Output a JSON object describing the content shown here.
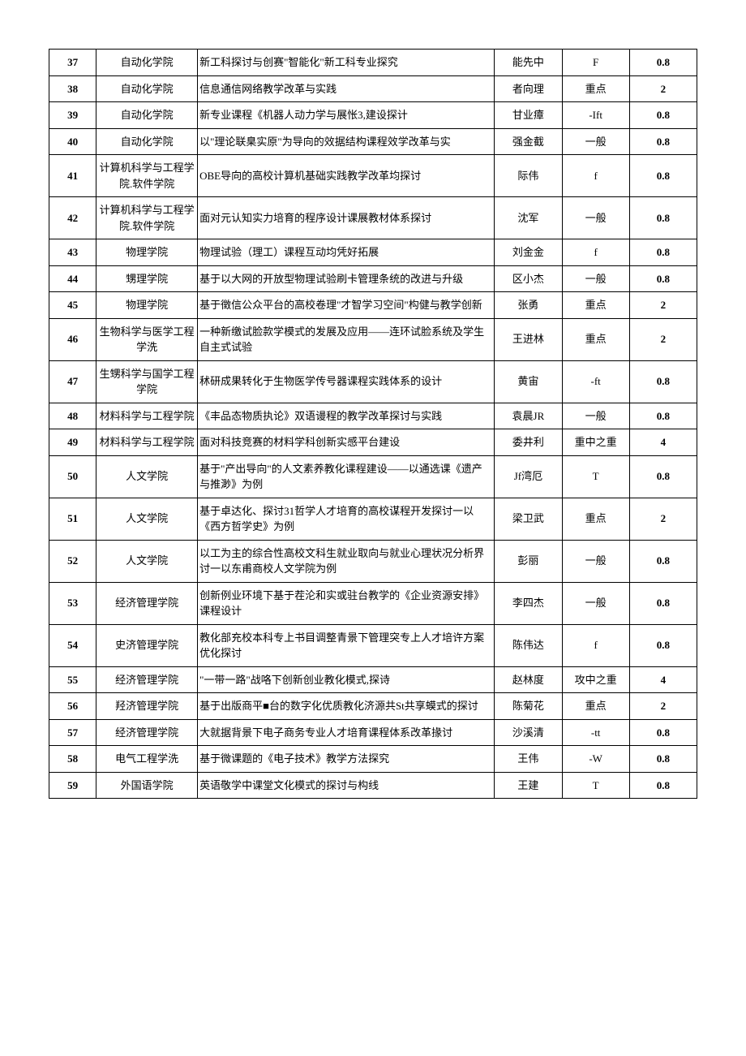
{
  "table": {
    "columns": [
      {
        "key": "id",
        "width": "7%",
        "align": "center",
        "bold": true
      },
      {
        "key": "dept",
        "width": "15%",
        "align": "center",
        "bold": false
      },
      {
        "key": "title",
        "width": "44%",
        "align": "left",
        "bold": false
      },
      {
        "key": "name",
        "width": "10%",
        "align": "center",
        "bold": false
      },
      {
        "key": "cat",
        "width": "10%",
        "align": "center",
        "bold": false
      },
      {
        "key": "score",
        "width": "10%",
        "align": "center",
        "bold": true
      }
    ],
    "border_color": "#000000",
    "background_color": "#ffffff",
    "font_family": "SimSun",
    "font_size_pt": 10,
    "rows": [
      {
        "id": "37",
        "dept": "自动化学院",
        "title": "新工科探讨与创赛\"智能化\"新工科专业探究",
        "name": "能先中",
        "cat": "F",
        "score": "0.8"
      },
      {
        "id": "38",
        "dept": "自动化学院",
        "title": "信息通信网络教学改革与实践",
        "name": "者向理",
        "cat": "重点",
        "score": "2"
      },
      {
        "id": "39",
        "dept": "自动化学院",
        "title": "新专业课程《机器人动力学与展怅3,建设探计",
        "name": "甘业瘴",
        "cat": "-Ift",
        "score": "0.8"
      },
      {
        "id": "40",
        "dept": "自动化学院",
        "title": "以\"理论联臬实原\"为导向的效据结构课程效学改革与实",
        "name": "强金截",
        "cat": "一般",
        "score": "0.8"
      },
      {
        "id": "41",
        "dept": "计算机科学与工程学院.软件学院",
        "title": "OBE导向的高校计算机基础实践教学改革均探讨",
        "name": "际伟",
        "cat": "f",
        "score": "0.8"
      },
      {
        "id": "42",
        "dept": "计算机科学与工程学院.软件学院",
        "title": "面对元认知实力培育的程序设计课展教材体系探讨",
        "name": "沈军",
        "cat": "一般",
        "score": "0.8"
      },
      {
        "id": "43",
        "dept": "物理学院",
        "title": "物理试验（理工）课程互动均凭好拓展",
        "name": "刘金金",
        "cat": "f",
        "score": "0.8"
      },
      {
        "id": "44",
        "dept": "甥理学院",
        "title": "基于以大网的开放型物理试验刷卡管理条统的改进与升级",
        "name": "区小杰",
        "cat": "一般",
        "score": "0.8"
      },
      {
        "id": "45",
        "dept": "物理学院",
        "title": "基于徵信公众平台的高校卷理\"才智学习空间\"构健与教学创新",
        "name": "张勇",
        "cat": "重点",
        "score": "2"
      },
      {
        "id": "46",
        "dept": "生物科学与医学工程学洗",
        "title": "一种新缴试脸款学模式的发展及应用——连环试脸系统及学生自主式试验",
        "name": "王进林",
        "cat": "重点",
        "score": "2"
      },
      {
        "id": "47",
        "dept": "生甥科学与国学工程学院",
        "title": "秫研成果转化于生物医学传号器课程实践体系的设计",
        "name": "黄宙",
        "cat": "-ft",
        "score": "0.8"
      },
      {
        "id": "48",
        "dept": "材料科学与工程学院",
        "title": "《丰品态物质执论》双语谩程的教学改革探讨与实践",
        "name": "袁晨JR",
        "cat": "一般",
        "score": "0.8"
      },
      {
        "id": "49",
        "dept": "材料科学与工程学院",
        "title": "面对科技竞赛的材料学科创新实感平台建设",
        "name": "委井利",
        "cat": "重中之重",
        "score": "4"
      },
      {
        "id": "50",
        "dept": "人文学院",
        "title": "基于\"产出导向\"的人文素养教化课程建设——以通选课《遗产与推渺》为例",
        "name": "Jf湾厄",
        "cat": "T",
        "score": "0.8"
      },
      {
        "id": "51",
        "dept": "人文学院",
        "title": "基于卓达化、探讨31哲学人才培育的高校谋程开发探讨一以《西方哲学史》为例",
        "name": "梁卫武",
        "cat": "重点",
        "score": "2"
      },
      {
        "id": "52",
        "dept": "人文学院",
        "title": "以工为主的综合性高校文科生就业取向与就业心理状况分析界讨一以东甫商校人文学院为例",
        "name": "彭丽",
        "cat": "一般",
        "score": "0.8"
      },
      {
        "id": "53",
        "dept": "经济管理学院",
        "title": "创新例业环境下基于茬沦和实或驻台教学的《企业资源安排》课程设计",
        "name": "李四杰",
        "cat": "一般",
        "score": "0.8"
      },
      {
        "id": "54",
        "dept": "史济管理学院",
        "title": "教化部充校本科专上书目调整青景下管理突专上人才培许方案优化探讨",
        "name": "陈伟达",
        "cat": "f",
        "score": "0.8"
      },
      {
        "id": "55",
        "dept": "经济管理学院",
        "title": "\"一带一路\"战咯下创新创业教化模式,探诗",
        "name": "赵林度",
        "cat": "攻中之重",
        "score": "4"
      },
      {
        "id": "56",
        "dept": "羟济管理学院",
        "title": "基于出版商平■台的数字化优质教化济源共St共享蟆式的探讨",
        "name": "陈菊花",
        "cat": "重点",
        "score": "2"
      },
      {
        "id": "57",
        "dept": "经济管理学院",
        "title": "大就据背景下电子商务专业人才培育课程体系改革掾讨",
        "name": "沙溪清",
        "cat": "-tt",
        "score": "0.8"
      },
      {
        "id": "58",
        "dept": "电气工程学洗",
        "title": "基于微课题的《电子技术》教学方法探究",
        "name": "王伟",
        "cat": "-W",
        "score": "0.8"
      },
      {
        "id": "59",
        "dept": "外国语学院",
        "title": "英语敬学中课堂文化模式的探讨与构线",
        "name": "王建",
        "cat": "T",
        "score": "0.8"
      }
    ]
  }
}
